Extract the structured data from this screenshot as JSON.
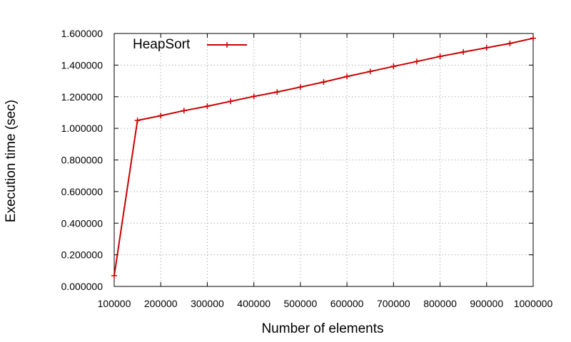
{
  "chart_data": {
    "type": "line",
    "xlabel": "Number of elements",
    "ylabel": "Execution time (sec)",
    "xlim": [
      100000,
      1000000
    ],
    "ylim": [
      0,
      1.6
    ],
    "x_ticks": [
      100000,
      200000,
      300000,
      400000,
      500000,
      600000,
      700000,
      800000,
      900000,
      1000000
    ],
    "x_tick_labels": [
      "100000",
      "200000",
      "300000",
      "400000",
      "500000",
      "600000",
      "700000",
      "800000",
      "900000",
      "1000000"
    ],
    "y_ticks": [
      0,
      0.2,
      0.4,
      0.6,
      0.8,
      1.0,
      1.2,
      1.4,
      1.6
    ],
    "y_tick_labels": [
      "0.000000",
      "0.200000",
      "0.400000",
      "0.600000",
      "0.800000",
      "1.000000",
      "1.200000",
      "1.400000",
      "1.600000"
    ],
    "grid": true,
    "legend_position": "top-left",
    "series": [
      {
        "name": "HeapSort",
        "color": "#cc0000",
        "marker": "plus",
        "x": [
          100000,
          150000,
          200000,
          250000,
          300000,
          350000,
          400000,
          450000,
          500000,
          550000,
          600000,
          650000,
          700000,
          750000,
          800000,
          850000,
          900000,
          950000,
          1000000
        ],
        "y": [
          0.068,
          1.05,
          1.08,
          1.112,
          1.14,
          1.171,
          1.202,
          1.23,
          1.261,
          1.293,
          1.328,
          1.36,
          1.392,
          1.423,
          1.455,
          1.483,
          1.51,
          1.537,
          1.57
        ]
      }
    ]
  }
}
